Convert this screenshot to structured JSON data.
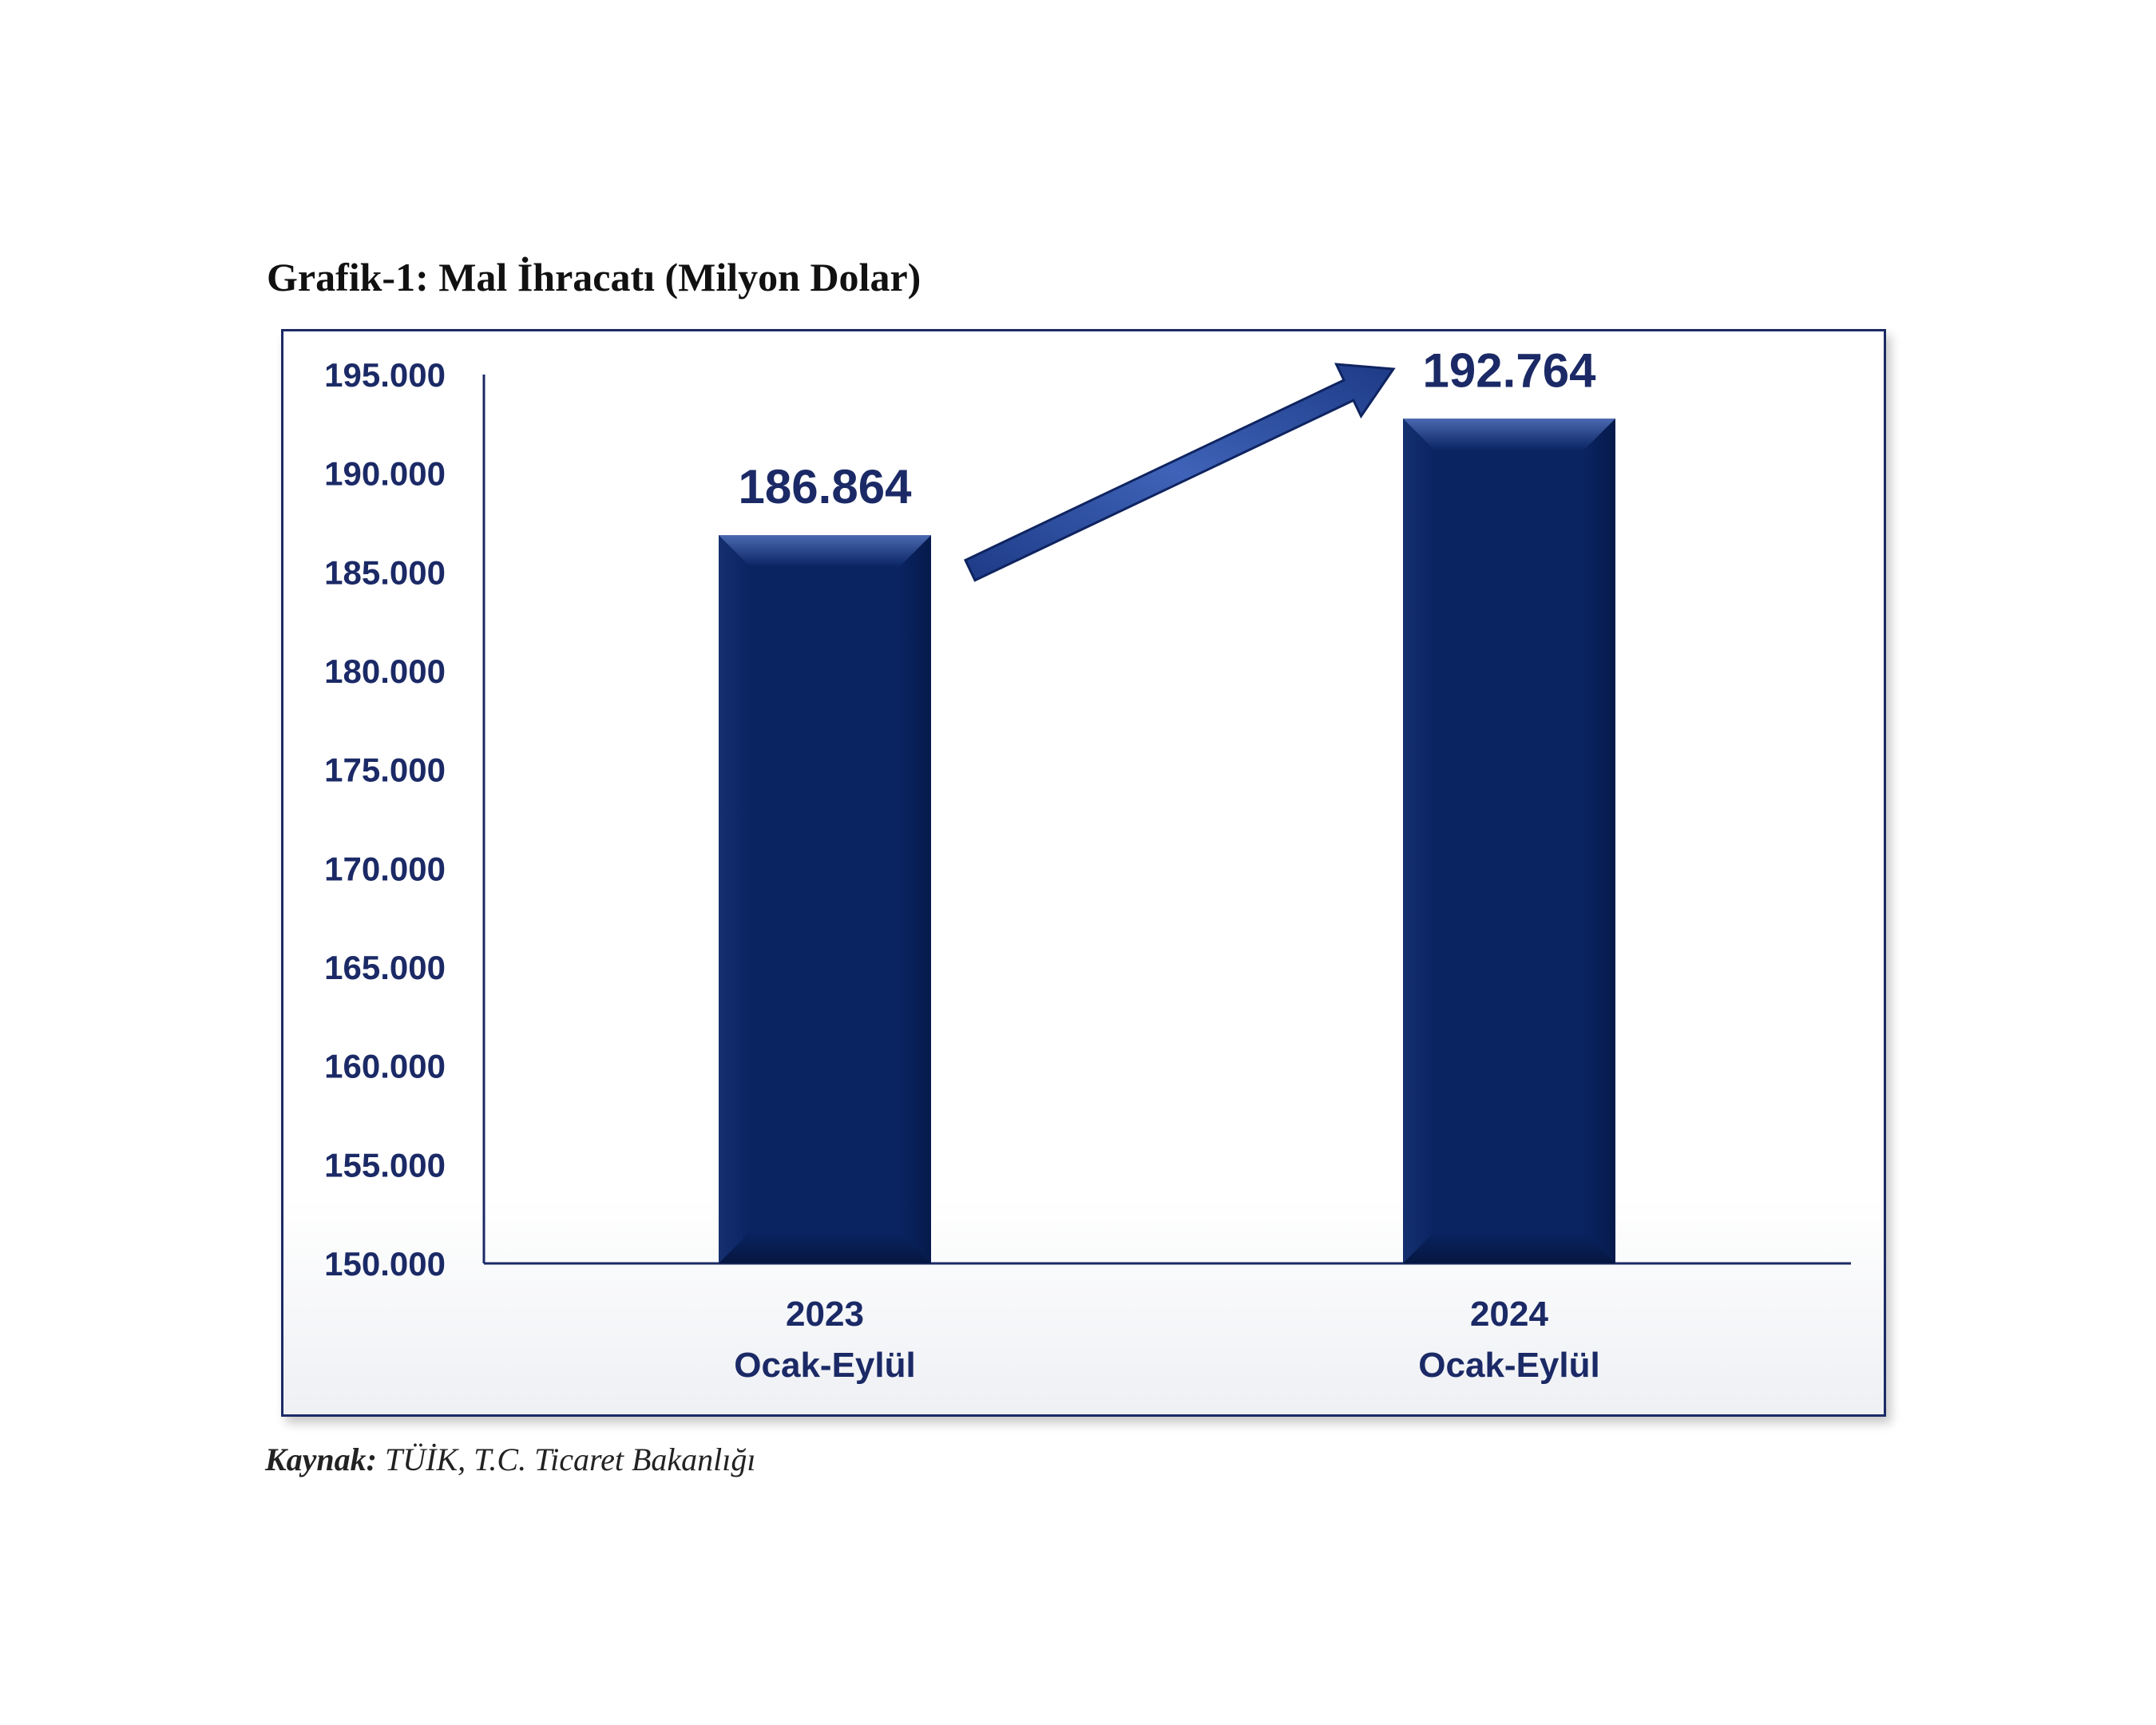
{
  "chart_data": {
    "type": "bar",
    "title": "Grafik-1: Mal İhracatı (Milyon Dolar)",
    "categories": [
      [
        "2023",
        "Ocak-Eylül"
      ],
      [
        "2024",
        "Ocak-Eylül"
      ]
    ],
    "values": [
      186864,
      192764
    ],
    "value_labels": [
      "186.864",
      "192.764"
    ],
    "yticks": [
      150000,
      155000,
      160000,
      165000,
      170000,
      175000,
      180000,
      185000,
      190000,
      195000
    ],
    "ytick_labels": [
      "150.000",
      "155.000",
      "160.000",
      "165.000",
      "170.000",
      "175.000",
      "180.000",
      "185.000",
      "190.000",
      "195.000"
    ],
    "ylim": [
      150000,
      195000
    ],
    "xlabel": "",
    "ylabel": "",
    "grid": false,
    "annotation": "upward-trend-arrow"
  },
  "source": {
    "label": "Kaynak:",
    "text": "TÜİK, T.C. Ticaret Bakanlığı"
  },
  "colors": {
    "bar": "#0a2462",
    "bar_light": "#3a5aa6",
    "text": "#1b2a66",
    "axis": "#1b2a66"
  }
}
